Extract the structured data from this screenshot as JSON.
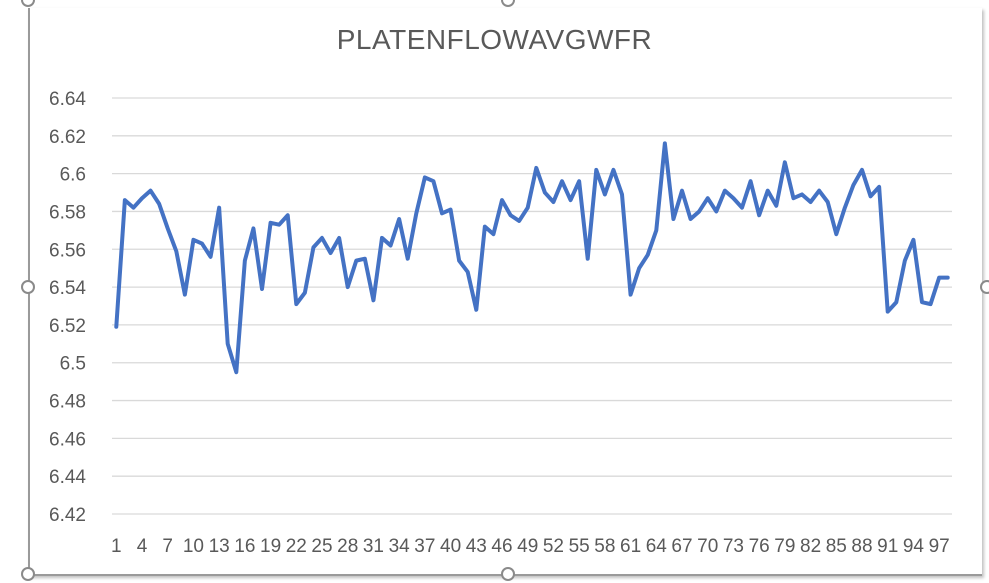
{
  "chart_data": {
    "type": "line",
    "title": "PLATENFLOWAVGWFR",
    "xlabel": "",
    "ylabel": "",
    "ylim": [
      6.42,
      6.64
    ],
    "y_ticks": [
      "6.42",
      "6.44",
      "6.46",
      "6.48",
      "6.5",
      "6.52",
      "6.54",
      "6.56",
      "6.58",
      "6.6",
      "6.62",
      "6.64"
    ],
    "x_tick_labels": [
      "1",
      "4",
      "7",
      "10",
      "13",
      "16",
      "19",
      "22",
      "25",
      "28",
      "31",
      "34",
      "37",
      "40",
      "43",
      "46",
      "49",
      "52",
      "55",
      "58",
      "61",
      "64",
      "67",
      "70",
      "73",
      "76",
      "79",
      "82",
      "85",
      "88",
      "91",
      "94",
      "97"
    ],
    "grid": true,
    "line_color": "#4472C4",
    "series": [
      {
        "values": [
          6.519,
          6.586,
          6.582,
          6.587,
          6.591,
          6.584,
          6.571,
          6.559,
          6.536,
          6.565,
          6.563,
          6.556,
          6.582,
          6.51,
          6.495,
          6.554,
          6.571,
          6.539,
          6.574,
          6.573,
          6.578,
          6.531,
          6.537,
          6.561,
          6.566,
          6.558,
          6.566,
          6.54,
          6.554,
          6.555,
          6.533,
          6.566,
          6.562,
          6.576,
          6.555,
          6.579,
          6.598,
          6.596,
          6.579,
          6.581,
          6.554,
          6.548,
          6.528,
          6.572,
          6.568,
          6.586,
          6.578,
          6.575,
          6.582,
          6.603,
          6.59,
          6.585,
          6.596,
          6.586,
          6.596,
          6.555,
          6.602,
          6.589,
          6.602,
          6.589,
          6.536,
          6.55,
          6.557,
          6.57,
          6.616,
          6.576,
          6.591,
          6.576,
          6.58,
          6.587,
          6.58,
          6.591,
          6.587,
          6.582,
          6.596,
          6.578,
          6.591,
          6.583,
          6.606,
          6.587,
          6.589,
          6.585,
          6.591,
          6.585,
          6.568,
          6.582,
          6.594,
          6.602,
          6.588,
          6.593,
          6.527,
          6.532,
          6.554,
          6.565,
          6.532,
          6.531,
          6.545,
          6.545
        ]
      }
    ]
  }
}
